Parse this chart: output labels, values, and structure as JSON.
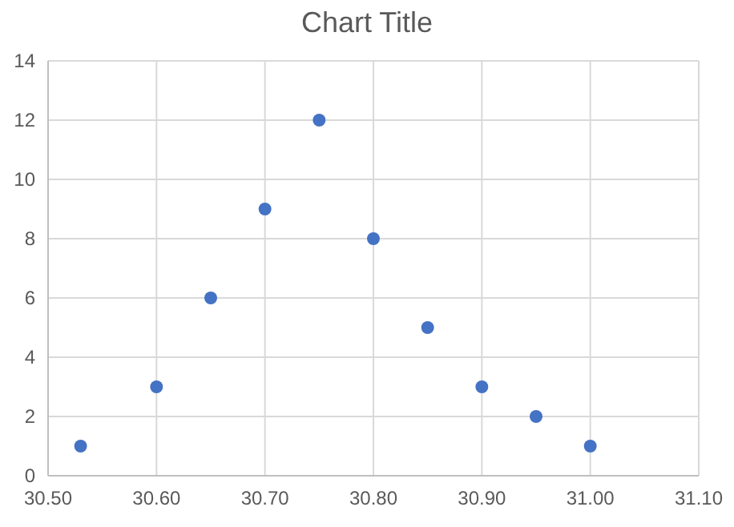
{
  "chart_data": {
    "type": "scatter",
    "title": "Chart Title",
    "x": [
      30.53,
      30.6,
      30.65,
      30.7,
      30.75,
      30.8,
      30.85,
      30.9,
      30.95,
      31.0
    ],
    "series": [
      {
        "color": "#4472c4",
        "values": [
          1,
          3,
          6,
          9,
          12,
          8,
          5,
          3,
          2,
          1
        ]
      }
    ],
    "xlim": [
      30.5,
      31.1
    ],
    "xticks": [
      {
        "value": 30.5,
        "label": "30.50"
      },
      {
        "value": 30.6,
        "label": "30.60"
      },
      {
        "value": 30.7,
        "label": "30.70"
      },
      {
        "value": 30.8,
        "label": "30.80"
      },
      {
        "value": 30.9,
        "label": "30.90"
      },
      {
        "value": 31.0,
        "label": "31.00"
      },
      {
        "value": 31.1,
        "label": "31.10"
      }
    ],
    "ylim": [
      0,
      14
    ],
    "yticks": [
      0,
      2,
      4,
      6,
      8,
      10,
      12,
      14
    ],
    "grid": true,
    "marker": "circle"
  }
}
